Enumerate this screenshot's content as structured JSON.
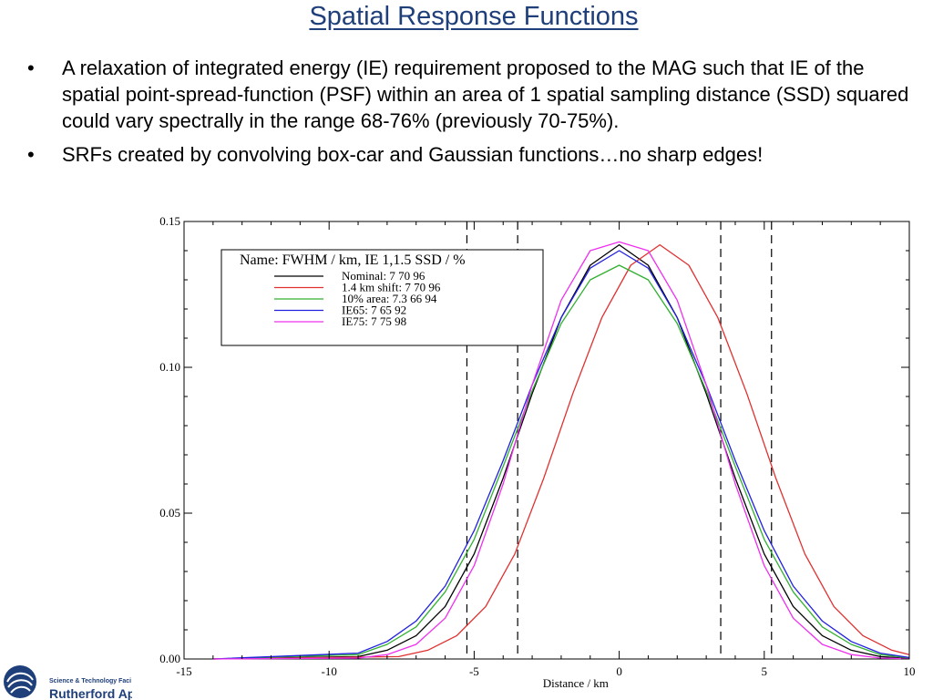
{
  "slide": {
    "title": "Spatial Response Functions",
    "bullets": [
      "A relaxation of integrated energy (IE) requirement proposed to the MAG such that IE of the spatial point-spread-function (PSF) within an area of 1 spatial sampling distance (SSD) squared could vary spectrally in the range 68-76% (previously 70-75%).",
      "SRFs created by convolving box-car and Gaussian functions…no sharp edges!"
    ],
    "bullet_symbol": "•"
  },
  "logo": {
    "line1": "Science & Technology Faci",
    "line2": "Rutherford Ap"
  },
  "chart_data": {
    "type": "line",
    "xlabel": "Distance / km",
    "ylabel": "",
    "xlim": [
      -15,
      10
    ],
    "ylim": [
      0,
      0.15
    ],
    "xticks": [
      -15,
      -10,
      -5,
      0,
      5,
      10
    ],
    "xtick_labels": [
      "-15",
      "-10",
      "-5",
      "0",
      "5",
      "10"
    ],
    "yticks": [
      0,
      0.05,
      0.1,
      0.15
    ],
    "ytick_labels": [
      "0.00",
      "0.05",
      "0.10",
      "0.15"
    ],
    "grid": false,
    "legend_title": "Name: FWHM / km, IE 1,1.5 SSD / %",
    "legend_position": "top-left",
    "vlines": [
      -5.25,
      -3.5,
      3.5,
      5.25
    ],
    "series": [
      {
        "name": "Nominal: 7 70 96",
        "color": "#000000",
        "x": [
          -14,
          -9,
          -8,
          -7,
          -6,
          -5,
          -4,
          -3,
          -2,
          -1,
          0,
          1,
          2,
          3,
          4,
          5,
          6,
          7,
          8,
          9,
          10
        ],
        "y": [
          0,
          0.0008,
          0.003,
          0.008,
          0.018,
          0.036,
          0.062,
          0.091,
          0.117,
          0.135,
          0.142,
          0.135,
          0.117,
          0.091,
          0.062,
          0.036,
          0.018,
          0.008,
          0.003,
          0.0008,
          0.0002
        ]
      },
      {
        "name": "1.4 km shift: 7 70 96",
        "color": "#e03030",
        "x": [
          -14,
          -7.6,
          -6.6,
          -5.6,
          -4.6,
          -3.6,
          -2.6,
          -1.6,
          -0.6,
          0.4,
          1.4,
          2.4,
          3.4,
          4.4,
          5.4,
          6.4,
          7.4,
          8.4,
          9.4,
          10
        ],
        "y": [
          0,
          0.0008,
          0.003,
          0.008,
          0.018,
          0.036,
          0.062,
          0.091,
          0.117,
          0.135,
          0.142,
          0.135,
          0.117,
          0.091,
          0.062,
          0.036,
          0.018,
          0.008,
          0.003,
          0.0015
        ]
      },
      {
        "name": "10% area: 7.3 66 94",
        "color": "#30b030",
        "x": [
          -14,
          -9,
          -8,
          -7,
          -6,
          -5,
          -4,
          -3,
          -2,
          -1,
          0,
          1,
          2,
          3,
          4,
          5,
          6,
          7,
          8,
          9,
          10
        ],
        "y": [
          0,
          0.0015,
          0.005,
          0.011,
          0.023,
          0.041,
          0.066,
          0.092,
          0.115,
          0.13,
          0.135,
          0.13,
          0.115,
          0.092,
          0.066,
          0.041,
          0.023,
          0.011,
          0.005,
          0.0015,
          0.0004
        ]
      },
      {
        "name": "IE65: 7 65 92",
        "color": "#2020e0",
        "x": [
          -14,
          -9,
          -8,
          -7,
          -6,
          -5,
          -4,
          -3,
          -2,
          -1,
          0,
          1,
          2,
          3,
          4,
          5,
          6,
          7,
          8,
          9,
          10
        ],
        "y": [
          0,
          0.002,
          0.006,
          0.013,
          0.025,
          0.044,
          0.068,
          0.094,
          0.117,
          0.134,
          0.14,
          0.134,
          0.117,
          0.094,
          0.068,
          0.044,
          0.025,
          0.013,
          0.006,
          0.002,
          0.0005
        ]
      },
      {
        "name": "IE75: 7 75 98",
        "color": "#ee30ee",
        "x": [
          -14,
          -9,
          -8,
          -7,
          -6,
          -5,
          -4,
          -3,
          -2,
          -1,
          0,
          1,
          2,
          3,
          4,
          5,
          6,
          7,
          8,
          9,
          10
        ],
        "y": [
          0,
          0.0003,
          0.0015,
          0.005,
          0.014,
          0.032,
          0.06,
          0.094,
          0.123,
          0.14,
          0.143,
          0.14,
          0.123,
          0.094,
          0.06,
          0.032,
          0.014,
          0.005,
          0.0015,
          0.0003,
          0.0001
        ]
      }
    ]
  }
}
